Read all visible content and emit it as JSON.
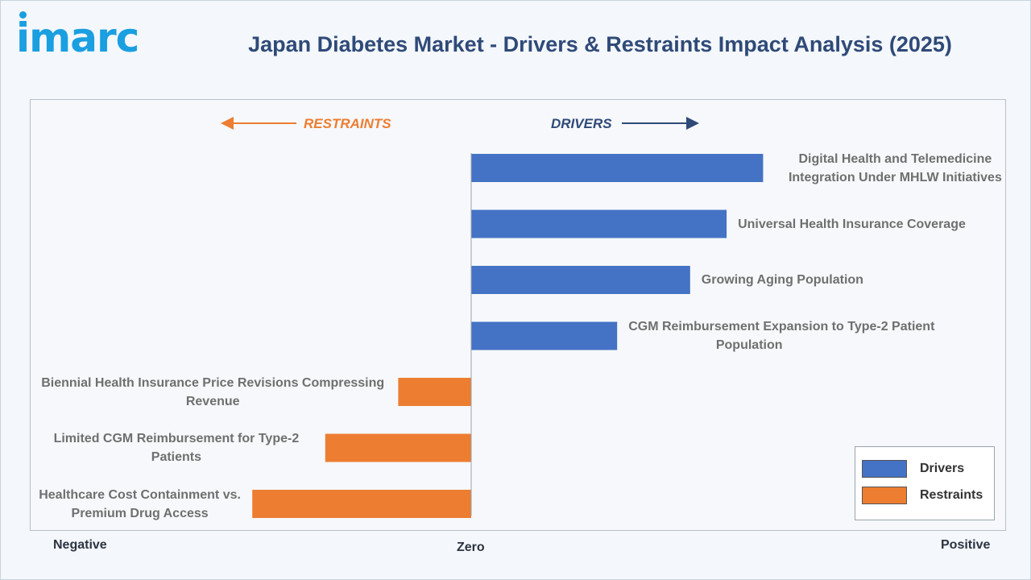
{
  "brand": "imarc",
  "title": "Japan Diabetes Market - Drivers & Restraints Impact Analysis (2025)",
  "captions": {
    "restraints": "RESTRAINTS",
    "drivers": "DRIVERS"
  },
  "axis": {
    "negative": "Negative",
    "zero": "Zero",
    "positive": "Positive"
  },
  "colors": {
    "drivers": "#4472c4",
    "restraints": "#ed7d31"
  },
  "legend": {
    "drivers": "Drivers",
    "restraints": "Restraints"
  },
  "chart_data": {
    "type": "bar",
    "orientation": "horizontal",
    "title": "Japan Diabetes Market - Drivers & Restraints Impact Analysis (2025)",
    "legend_placement": "bottom-right",
    "drivers": [
      {
        "label_lines": [
          "Digital Health and Telemedicine",
          "Integration Under MHLW Initiatives"
        ],
        "value": 8
      },
      {
        "label_lines": [
          "Universal Health Insurance Coverage"
        ],
        "value": 7
      },
      {
        "label_lines": [
          "Growing Aging Population"
        ],
        "value": 6
      },
      {
        "label_lines": [
          "CGM Reimbursement Expansion to Type-2 Patient",
          "Population"
        ],
        "value": 4
      }
    ],
    "restraints": [
      {
        "label_lines": [
          "Biennial Health Insurance Price Revisions Compressing",
          "Revenue"
        ],
        "value": -2
      },
      {
        "label_lines": [
          "Limited CGM Reimbursement for Type-2",
          "Patients"
        ],
        "value": -4
      },
      {
        "label_lines": [
          "Healthcare Cost Containment vs.",
          "Premium Drug Access"
        ],
        "value": -6
      }
    ]
  }
}
